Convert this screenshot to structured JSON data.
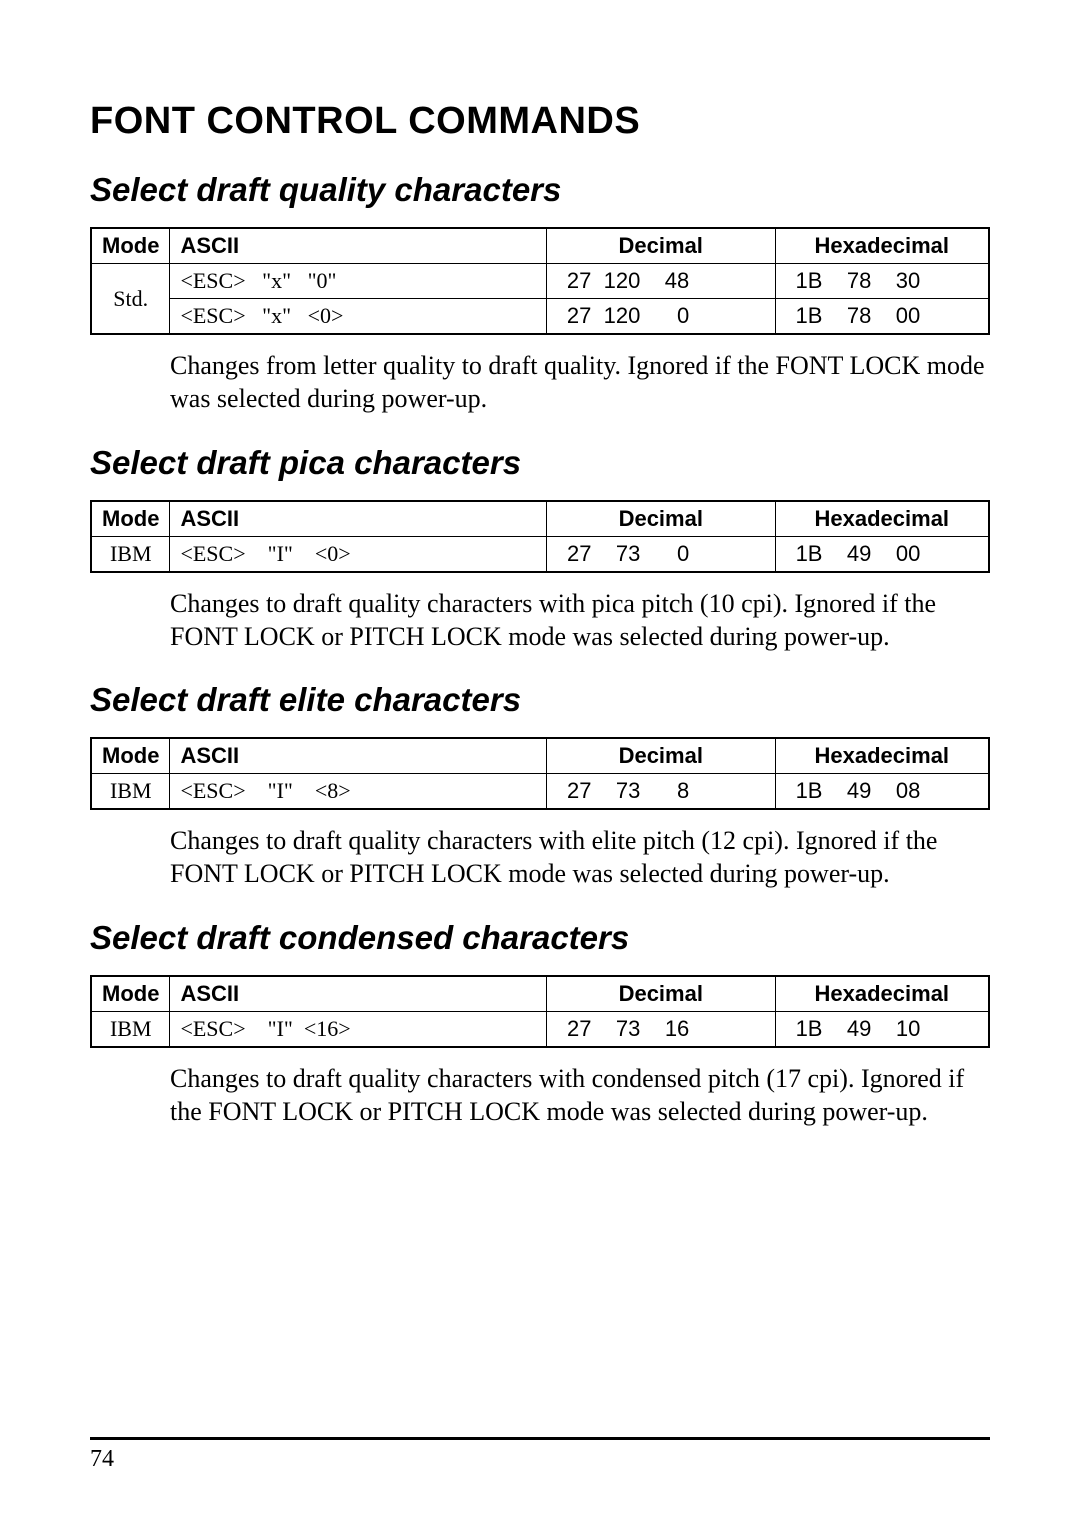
{
  "page_title": "FONT CONTROL COMMANDS",
  "page_number": "74",
  "headers": {
    "mode": "Mode",
    "ascii": "ASCII",
    "decimal": "Decimal",
    "hex": "Hexadecimal"
  },
  "sections": [
    {
      "title": "Select draft quality characters",
      "rows": [
        {
          "mode": "Std.",
          "mode_rowspan": 2,
          "ascii": "<ESC>   \"x\"   \"0\"",
          "decimal": "27  120    48",
          "hex": "1B    78    30"
        },
        {
          "ascii": "<ESC>   \"x\"   <0>",
          "decimal": "27  120      0",
          "hex": "1B    78    00"
        }
      ],
      "description": "Changes from letter quality to draft quality. Ignored if the FONT LOCK mode was selected during power-up."
    },
    {
      "title": "Select draft pica characters",
      "rows": [
        {
          "mode": "IBM",
          "ascii": "<ESC>    \"I\"    <0>",
          "decimal": "27    73      0",
          "hex": "1B    49    00"
        }
      ],
      "description": "Changes to draft quality characters with pica pitch (10 cpi). Ignored if the FONT LOCK or PITCH LOCK mode was selected during power-up."
    },
    {
      "title": "Select draft elite characters",
      "rows": [
        {
          "mode": "IBM",
          "ascii": "<ESC>    \"I\"    <8>",
          "decimal": "27    73      8",
          "hex": "1B    49    08"
        }
      ],
      "description": "Changes to draft quality characters with elite pitch (12 cpi). Ignored if the FONT LOCK or PITCH LOCK mode was selected during power-up."
    },
    {
      "title": "Select draft condensed characters",
      "rows": [
        {
          "mode": "IBM",
          "ascii": "<ESC>    \"I\"  <16>",
          "decimal": "27    73    16",
          "hex": "1B    49    10"
        }
      ],
      "description": "Changes to draft quality characters with condensed pitch (17 cpi). Ignored if the FONT LOCK or PITCH LOCK mode was selected during power-up."
    }
  ]
}
